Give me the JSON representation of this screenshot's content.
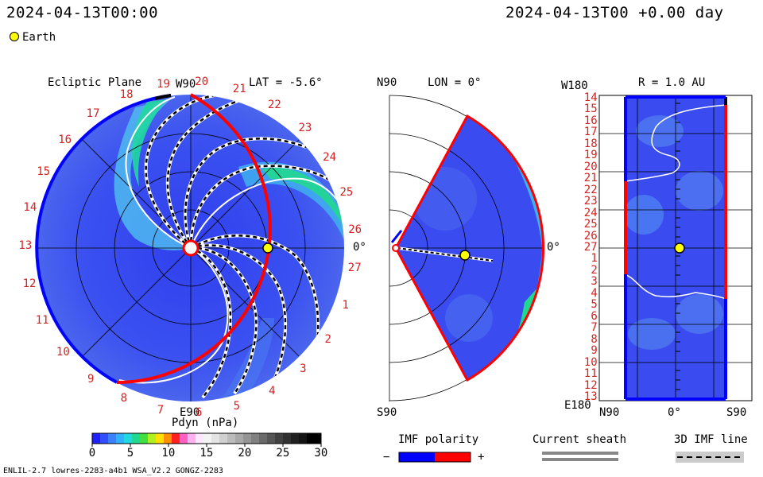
{
  "header": {
    "timestamp_left": "2024-04-13T00:00",
    "timestamp_right": "2024-04-13T00 +0.00 day",
    "earth_legend": "Earth"
  },
  "panels": {
    "ecliptic": {
      "title": "Ecliptic Plane",
      "lat_label": "LAT = -5.6°",
      "top_label": "W90",
      "bottom_label": "E90",
      "right_label": "0°",
      "carrington_ticks": [
        "19",
        "20",
        "21",
        "22",
        "23",
        "24",
        "25",
        "26",
        "27",
        "1",
        "2",
        "3",
        "4",
        "5",
        "6",
        "7",
        "8",
        "9",
        "10",
        "11",
        "12",
        "13",
        "14",
        "15",
        "16",
        "17",
        "18"
      ]
    },
    "meridional": {
      "top_left_label": "N90",
      "lon_label": "LON = 0°",
      "right_label": "0°",
      "bottom_label": "S90"
    },
    "radial": {
      "top_left_label": "W180",
      "r_label": "R = 1.0 AU",
      "bottom_left_label": "E180",
      "bottom_axis": [
        "N90",
        "0°",
        "S90"
      ],
      "y_ticks": [
        "14",
        "15",
        "16",
        "17",
        "18",
        "19",
        "20",
        "21",
        "22",
        "23",
        "24",
        "25",
        "26",
        "27",
        "1",
        "2",
        "3",
        "4",
        "5",
        "6",
        "7",
        "8",
        "9",
        "10",
        "11",
        "12",
        "13"
      ]
    }
  },
  "colorbar": {
    "title": "Pdyn (nPa)",
    "ticks": [
      "0",
      "5",
      "10",
      "15",
      "20",
      "25",
      "30"
    ]
  },
  "legends": {
    "imf_polarity": {
      "title": "IMF polarity",
      "minus": "−",
      "plus": "+"
    },
    "current_sheath": {
      "title": "Current sheath"
    },
    "imf_line": {
      "title": "3D IMF line"
    }
  },
  "footer": {
    "model_info": "ENLIL-2.7 lowres-2283-a4b1 WSA_V2.2 GONGZ-2283"
  },
  "colors": {
    "background_wind": "#3a4bf0",
    "positive_polarity": "#ff0000",
    "negative_polarity": "#0000ff",
    "earth": "#ffff00"
  }
}
